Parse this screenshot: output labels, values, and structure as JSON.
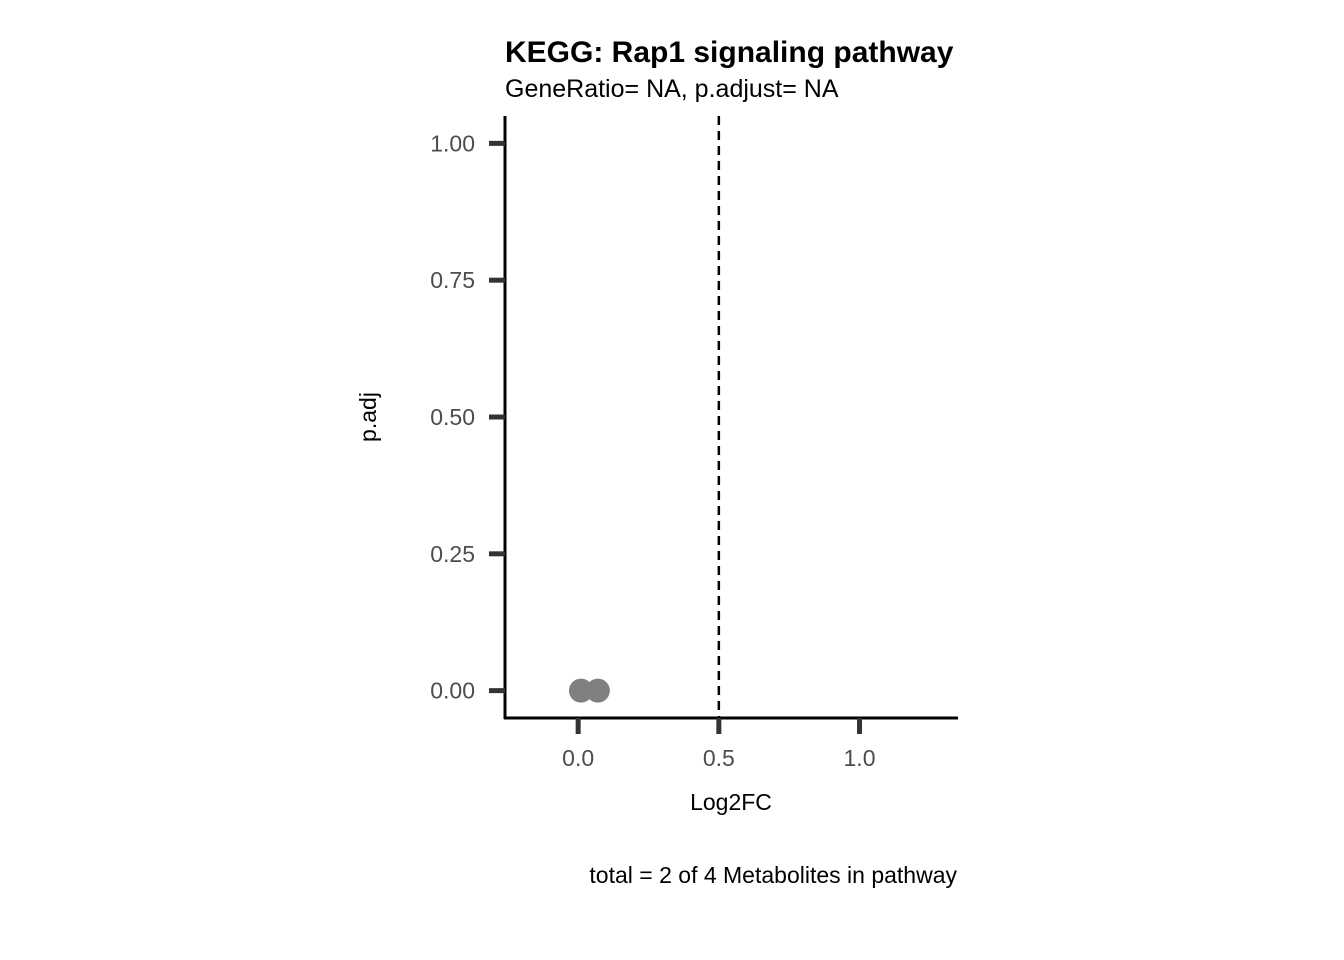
{
  "chart_data": {
    "type": "scatter",
    "title": "KEGG: Rap1 signaling pathway",
    "subtitle": "GeneRatio= NA, p.adjust= NA",
    "xlabel": "Log2FC",
    "ylabel": "p.adj",
    "caption": "total = 2 of 4 Metabolites in pathway",
    "xlim": [
      -0.26,
      1.35
    ],
    "ylim": [
      -0.05,
      1.05
    ],
    "x_ticks": [
      0.0,
      0.5,
      1.0
    ],
    "x_tick_labels": [
      "0.0",
      "0.5",
      "1.0"
    ],
    "y_ticks": [
      0.0,
      0.25,
      0.5,
      0.75,
      1.0
    ],
    "y_tick_labels": [
      "0.00",
      "0.25",
      "0.50",
      "0.75",
      "1.00"
    ],
    "reference_lines": [
      {
        "axis": "x",
        "value": 0.5,
        "style": "dashed",
        "color": "#000000"
      }
    ],
    "series": [
      {
        "color": "#808080",
        "points": [
          {
            "x": 0.01,
            "y": 0.0
          },
          {
            "x": 0.07,
            "y": 0.0
          }
        ]
      }
    ],
    "grid": false,
    "legend": "none"
  }
}
